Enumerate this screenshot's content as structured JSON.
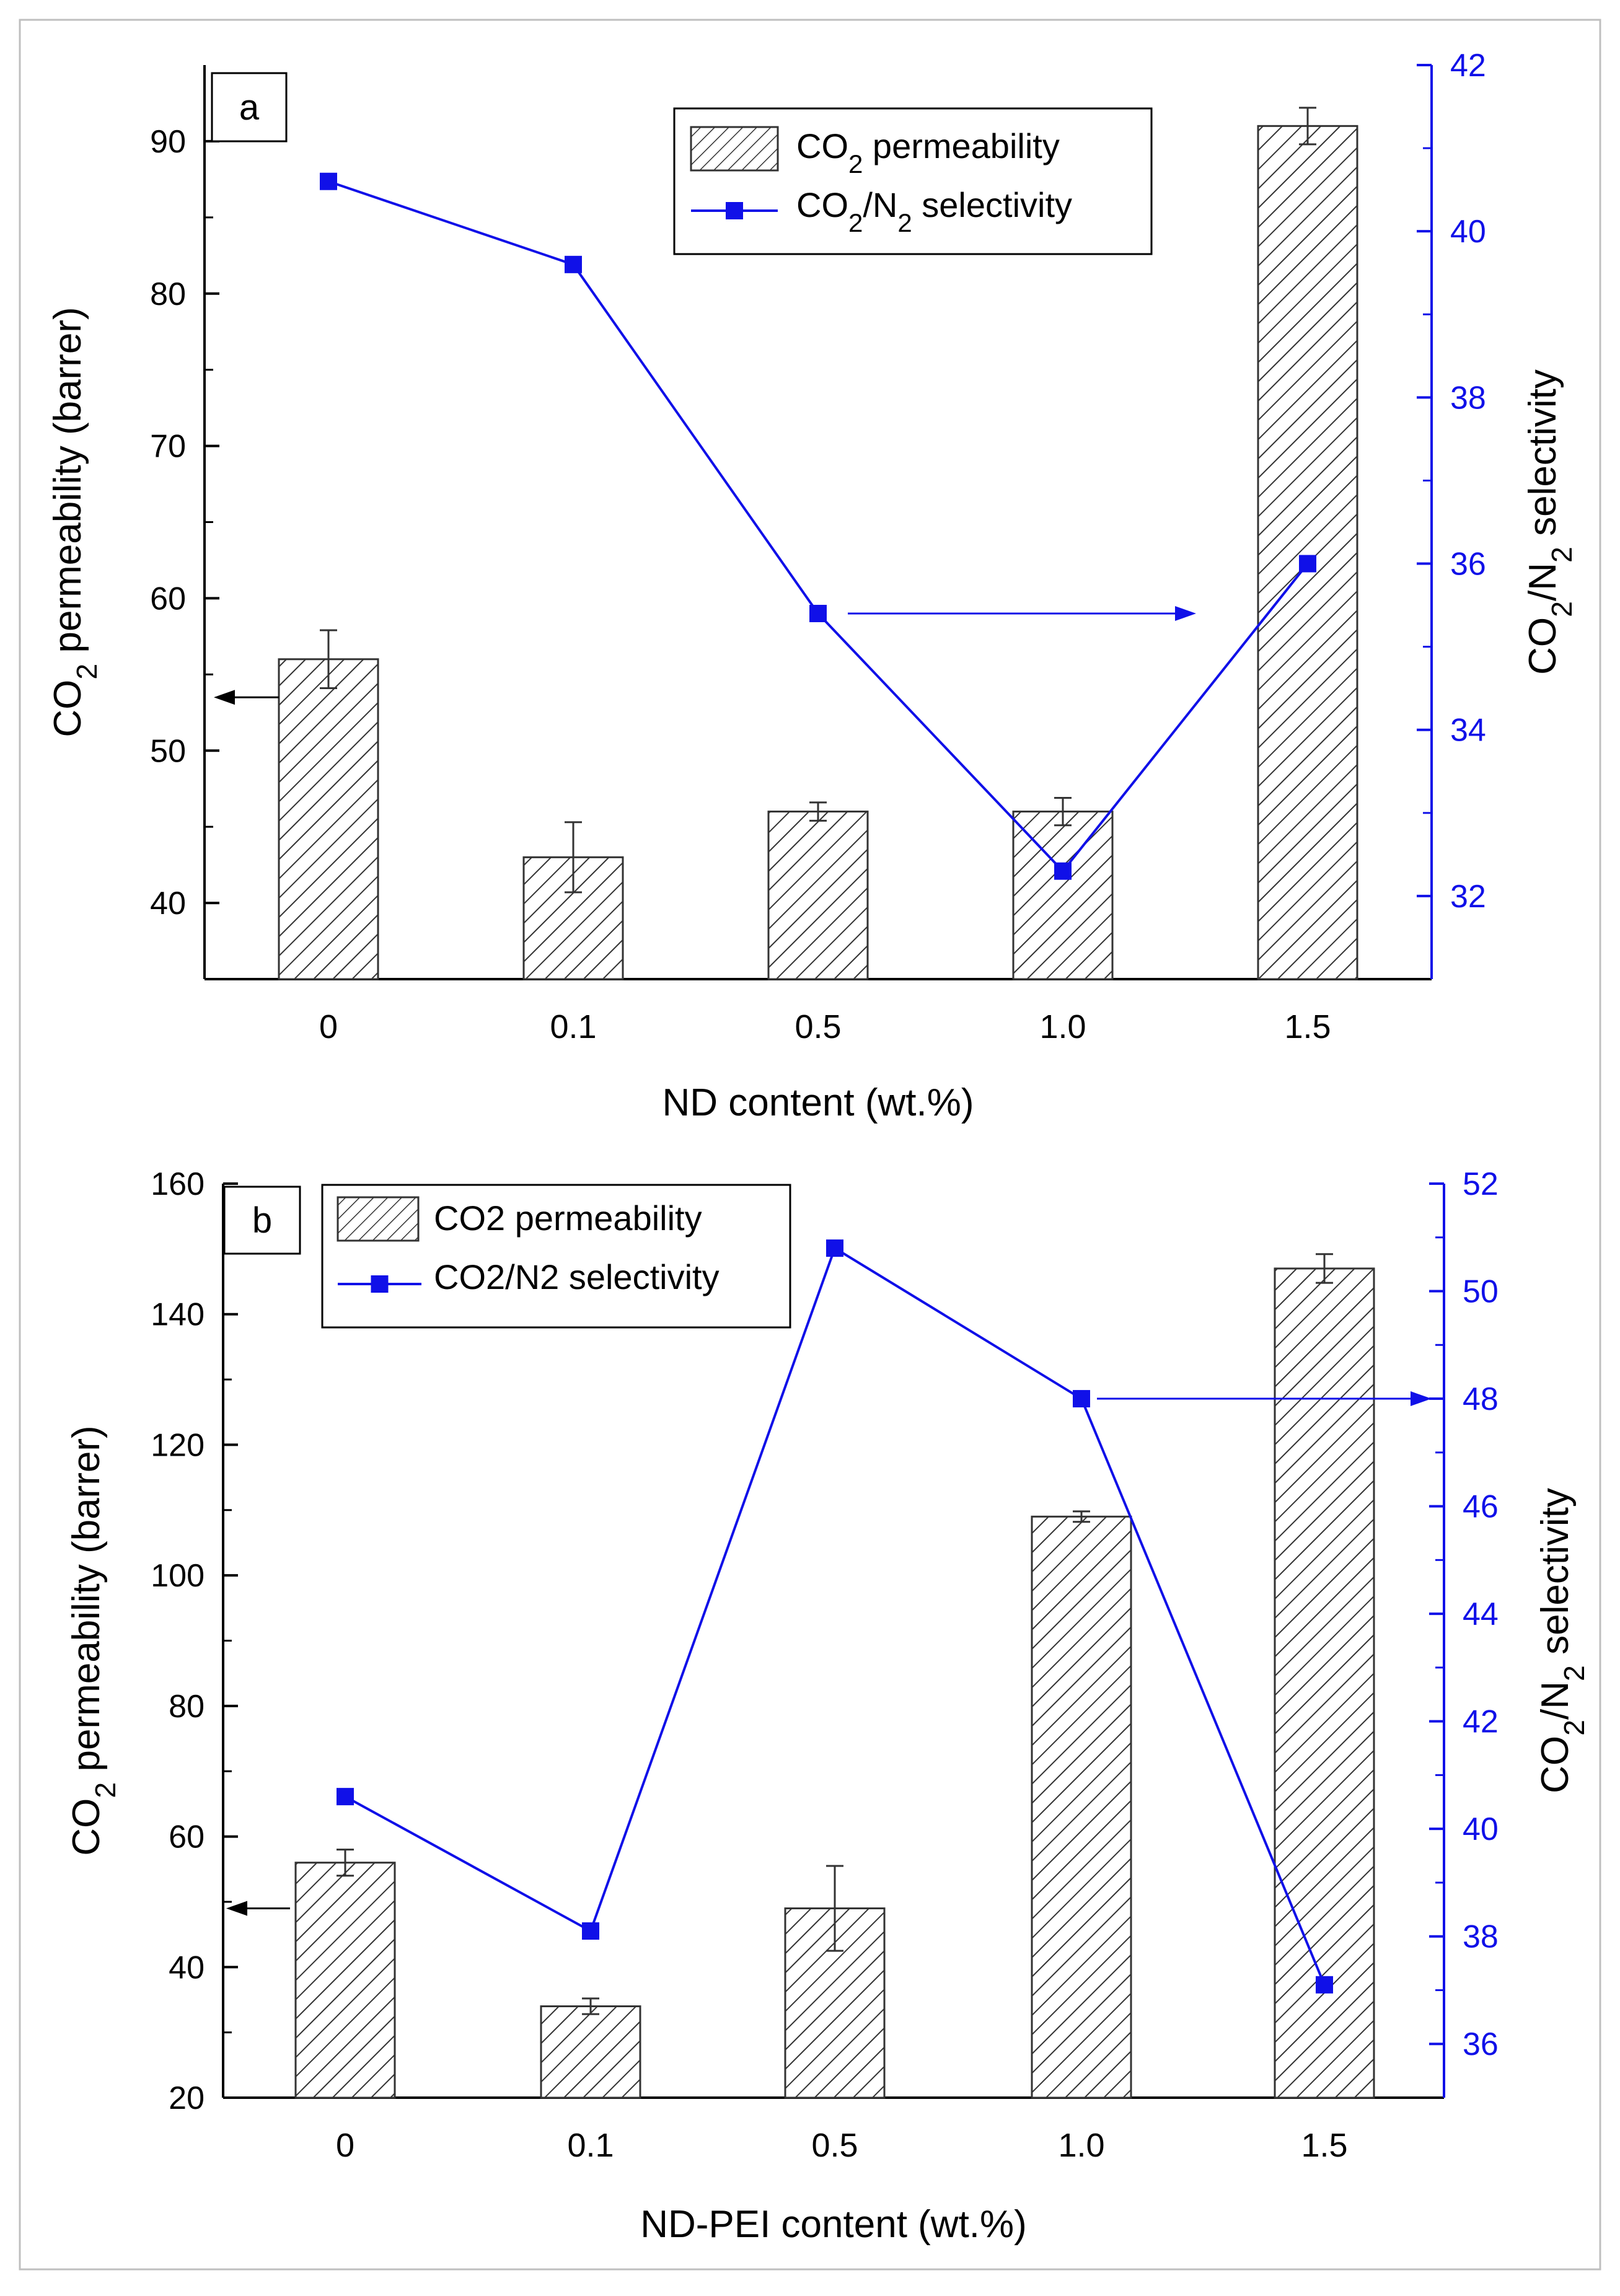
{
  "chart_data": [
    {
      "panel_label": "a",
      "type": "bar",
      "categories": [
        "0",
        "0.1",
        "0.5",
        "1.0",
        "1.5"
      ],
      "xlabel": "ND content (wt.%)",
      "ylabel": "CO₂ permeability (barrer)",
      "y2label": "CO₂/N₂ selectivity",
      "ylim": [
        35,
        95
      ],
      "yticks": [
        40,
        50,
        60,
        70,
        80,
        90
      ],
      "y2lim": [
        31,
        42
      ],
      "y2ticks": [
        32,
        34,
        36,
        38,
        40,
        42
      ],
      "legend": {
        "placement": "top-center",
        "bar_label": "CO₂ permeability",
        "line_label": "CO₂/N₂ selectivity"
      },
      "series": [
        {
          "name": "CO₂ permeability",
          "kind": "bar",
          "axis": "left",
          "values": [
            56,
            43,
            46,
            46,
            91
          ],
          "errors": [
            1.9,
            2.3,
            0.6,
            0.9,
            1.2
          ]
        },
        {
          "name": "CO₂/N₂ selectivity",
          "kind": "line",
          "axis": "right",
          "values": [
            40.6,
            39.6,
            35.4,
            32.3,
            36.0
          ]
        }
      ],
      "annotations": [
        {
          "type": "arrow",
          "direction": "left",
          "points_to": "left-axis",
          "at_value": 53.5
        },
        {
          "type": "arrow",
          "direction": "right",
          "points_to": "right-axis",
          "at_value": 35.4
        }
      ],
      "colors": {
        "bars": "#333333",
        "line": "#1010e8",
        "right_axis": "#1010e8"
      },
      "grid": false
    },
    {
      "panel_label": "b",
      "type": "bar",
      "categories": [
        "0",
        "0.1",
        "0.5",
        "1.0",
        "1.5"
      ],
      "xlabel": "ND-PEI content (wt.%)",
      "ylabel": "CO₂ permeability (barrer)",
      "y2label": "CO₂/N₂ selectivity",
      "ylim": [
        20,
        160
      ],
      "yticks": [
        20,
        40,
        60,
        80,
        100,
        120,
        140,
        160
      ],
      "y2lim": [
        35,
        52
      ],
      "y2ticks": [
        36,
        38,
        40,
        42,
        44,
        46,
        48,
        50,
        52
      ],
      "legend": {
        "placement": "top-left",
        "bar_label": "CO2 permeability",
        "line_label": "CO2/N2 selectivity"
      },
      "series": [
        {
          "name": "CO2 permeability",
          "kind": "bar",
          "axis": "left",
          "values": [
            56,
            34,
            49,
            109,
            147
          ],
          "errors": [
            2,
            1.2,
            6.5,
            0.8,
            2.2
          ]
        },
        {
          "name": "CO2/N2 selectivity",
          "kind": "line",
          "axis": "right",
          "values": [
            40.6,
            38.1,
            50.8,
            48.0,
            37.1
          ]
        }
      ],
      "annotations": [
        {
          "type": "arrow",
          "direction": "left",
          "points_to": "left-axis",
          "at_value": 49
        },
        {
          "type": "arrow",
          "direction": "right",
          "points_to": "right-axis",
          "at_value": 48
        }
      ],
      "colors": {
        "bars": "#333333",
        "line": "#1010e8",
        "right_axis": "#1010e8"
      },
      "grid": false
    }
  ]
}
